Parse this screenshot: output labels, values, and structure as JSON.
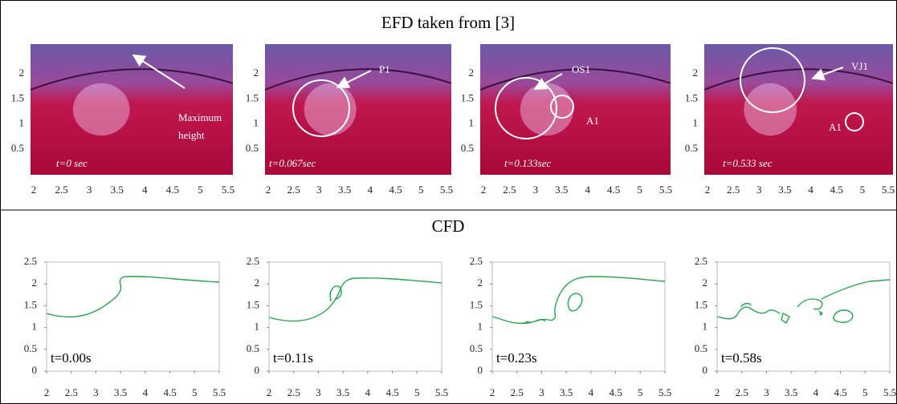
{
  "efd": {
    "title": "EFD taken from [3]",
    "panels": [
      {
        "time": "t=0 sec",
        "labels": [
          "Maximum",
          "height"
        ]
      },
      {
        "time": "t=0.067sec",
        "labels": [
          "P1"
        ]
      },
      {
        "time": "t=0.133sec",
        "labels": [
          "OS1",
          "A1"
        ]
      },
      {
        "time": "t=0.533 sec",
        "labels": [
          "VJ1",
          "A1"
        ]
      }
    ],
    "xticks": [
      2,
      2.5,
      3,
      3.5,
      4,
      4.5,
      5,
      5.5
    ],
    "yticks": [
      0.5,
      1,
      1.5,
      2
    ]
  },
  "cfd": {
    "title": "CFD",
    "panels": [
      {
        "time": "t=0.00s"
      },
      {
        "time": "t=0.11s"
      },
      {
        "time": "t=0.23s"
      },
      {
        "time": "t=0.58s"
      }
    ],
    "xlim": [
      2,
      5.5
    ],
    "ylim": [
      0,
      2.5
    ],
    "xticks": [
      2,
      2.5,
      3,
      3.5,
      4,
      4.5,
      5,
      5.5
    ],
    "yticks": [
      0,
      0.5,
      1,
      1.5,
      2,
      2.5
    ]
  }
}
